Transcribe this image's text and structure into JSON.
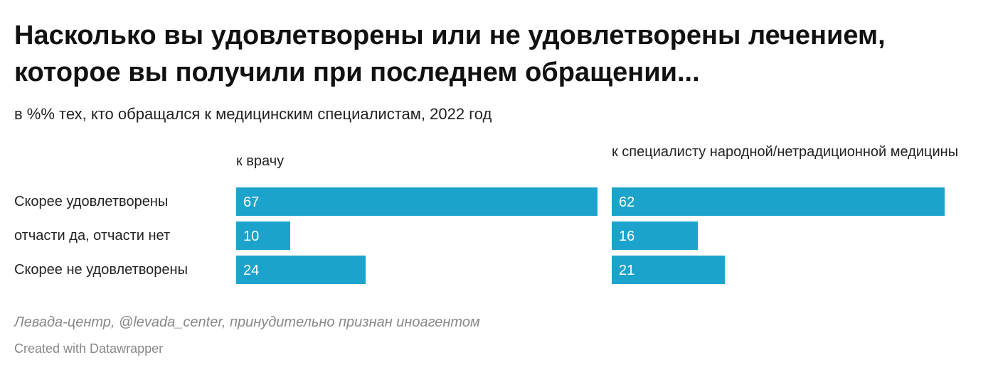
{
  "title": "Насколько вы удовлетворены или не удовлетворены лечением, которое вы получили при последнем обращении...",
  "subtitle": "в %% тех, кто обращался к медицинским специалистам, 2022 год",
  "footer": {
    "source": "Левада-центр, @levada_center, принудительно признан иноагентом",
    "credit": "Created with Datawrapper"
  },
  "colors": {
    "bar": "#1ca3cc",
    "bar_label": "#ffffff",
    "text": "#222222",
    "muted": "#888888"
  },
  "chart_data": {
    "type": "bar",
    "title": "Насколько вы удовлетворены или не удовлетворены лечением, которое вы получили при последнем обращении...",
    "subtitle": "в %% тех, кто обращался к медицинским специалистам, 2022 год",
    "categories": [
      "Скорее удовлетворены",
      "отчасти да, отчасти нет",
      "Скорее не удовлетворены"
    ],
    "series": [
      {
        "name": "к врачу",
        "values": [
          67,
          10,
          24
        ]
      },
      {
        "name": "к специалисту народной/нетрадиционной медицины",
        "values": [
          62,
          16,
          21
        ]
      }
    ],
    "xlim": [
      0,
      67
    ],
    "grid": false,
    "legend": "column headers",
    "orientation": "horizontal"
  }
}
